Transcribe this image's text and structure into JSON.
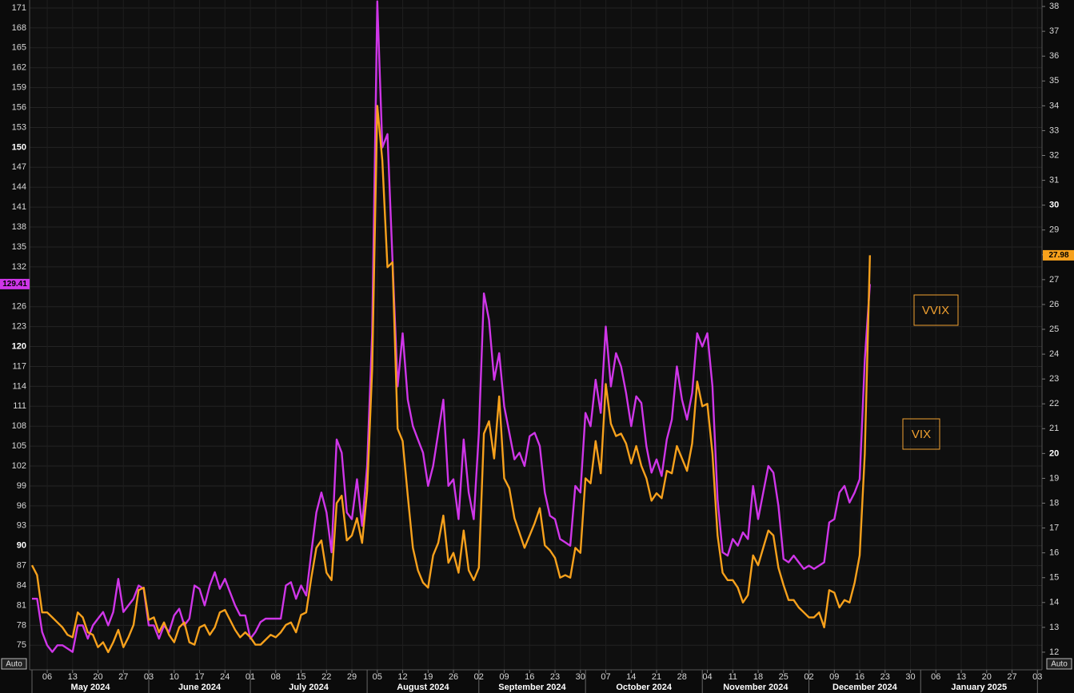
{
  "chart_data": {
    "type": "line",
    "categories": [
      null,
      null,
      null,
      "06",
      null,
      null,
      null,
      null,
      "13",
      null,
      null,
      null,
      null,
      "20",
      null,
      null,
      null,
      null,
      "27",
      null,
      null,
      null,
      null,
      "03",
      null,
      null,
      null,
      null,
      "10",
      null,
      null,
      null,
      null,
      "17",
      null,
      null,
      null,
      null,
      "24",
      null,
      null,
      null,
      null,
      "01",
      null,
      null,
      null,
      null,
      "08",
      null,
      null,
      null,
      null,
      "15",
      null,
      null,
      null,
      null,
      "22",
      null,
      null,
      null,
      null,
      "29",
      null,
      null,
      null,
      null,
      "05",
      null,
      null,
      null,
      null,
      "12",
      null,
      null,
      null,
      null,
      "19",
      null,
      null,
      null,
      null,
      "26",
      null,
      null,
      null,
      null,
      "02",
      null,
      null,
      null,
      null,
      "09",
      null,
      null,
      null,
      null,
      "16",
      null,
      null,
      null,
      null,
      "23",
      null,
      null,
      null,
      null,
      "30",
      null,
      null,
      null,
      null,
      "07",
      null,
      null,
      null,
      null,
      "14",
      null,
      null,
      null,
      null,
      "21",
      null,
      null,
      null,
      null,
      "28",
      null,
      null,
      null,
      null,
      "04",
      null,
      null,
      null,
      null,
      "11",
      null,
      null,
      null,
      null,
      "18",
      null,
      null,
      null,
      null,
      "25",
      null,
      null,
      null,
      null,
      "02",
      null,
      null,
      null,
      null,
      "09",
      null,
      null,
      null,
      null,
      "16",
      null,
      null,
      null,
      null,
      "23",
      null,
      null,
      null,
      null,
      "30",
      null,
      null,
      null,
      null,
      "06",
      null,
      null,
      null,
      null,
      "13",
      null,
      null,
      null,
      null,
      "20",
      null,
      null,
      null,
      null,
      "27",
      null,
      null,
      null,
      null,
      "03"
    ],
    "months": [
      "May 2024",
      "June 2024",
      "July 2024",
      "August 2024",
      "September 2024",
      "October 2024",
      "November 2024",
      "December 2024",
      "January 2025"
    ],
    "series": [
      {
        "name": "VVIX",
        "color": "#cf36e8",
        "values": [
          82,
          82,
          77,
          75,
          74,
          75,
          75,
          74.5,
          74,
          78,
          78,
          76,
          78,
          79,
          80,
          78,
          80,
          85,
          80,
          81,
          82,
          84,
          83.5,
          78,
          78,
          76,
          78,
          77,
          79.5,
          80.5,
          78,
          79,
          84,
          83.5,
          81,
          84,
          86,
          83.5,
          85,
          83,
          81,
          79.5,
          79.5,
          76,
          77,
          78.5,
          79,
          79,
          79,
          79,
          84,
          84.5,
          82,
          84,
          82.5,
          89,
          95,
          98,
          95,
          89,
          106,
          104,
          95,
          94,
          100,
          93,
          102,
          122,
          172,
          150,
          152,
          133,
          114,
          122,
          112,
          108,
          106,
          104,
          99,
          102,
          107,
          112,
          99,
          100,
          94,
          106,
          98,
          94,
          107,
          128,
          124,
          115,
          119,
          111,
          107,
          103,
          104,
          102,
          106.5,
          107,
          105,
          98,
          94.5,
          94,
          91,
          90.5,
          90,
          99,
          98,
          110,
          108,
          115,
          110,
          123,
          114,
          119,
          117,
          113,
          108,
          112.5,
          111.5,
          105,
          101,
          103,
          100.5,
          106,
          109,
          117,
          112,
          109,
          113,
          122,
          120,
          122,
          114,
          97,
          89,
          88.5,
          91,
          90,
          92,
          91,
          99,
          94,
          98,
          102,
          101,
          96,
          88,
          87.5,
          88.5,
          87.5,
          86.5,
          87,
          86.5,
          87,
          87.5,
          93.5,
          94,
          98,
          99,
          96.5,
          98,
          100,
          118,
          129.41,
          null,
          null,
          null,
          null,
          null,
          null,
          null,
          null,
          null,
          null,
          null,
          null,
          null,
          null,
          null,
          null,
          null,
          null,
          null,
          null,
          null,
          null,
          null,
          null,
          null,
          null,
          null,
          null,
          null,
          null,
          null,
          null,
          null
        ]
      },
      {
        "name": "VIX",
        "color": "#f7a11c",
        "axis": "y2",
        "values": [
          15.5,
          15.1,
          13.6,
          13.6,
          13.4,
          13.2,
          13.0,
          12.7,
          12.6,
          13.6,
          13.4,
          12.8,
          12.7,
          12.2,
          12.4,
          12.0,
          12.4,
          12.9,
          12.2,
          12.6,
          13.1,
          14.5,
          14.6,
          13.3,
          13.4,
          12.8,
          13.2,
          12.7,
          12.4,
          13.0,
          13.2,
          12.4,
          12.3,
          13.0,
          13.1,
          12.7,
          13.0,
          13.6,
          13.7,
          13.3,
          12.9,
          12.6,
          12.8,
          12.6,
          12.3,
          12.3,
          12.5,
          12.7,
          12.6,
          12.8,
          13.1,
          13.2,
          12.8,
          13.5,
          13.6,
          15.0,
          16.2,
          16.5,
          15.2,
          14.9,
          18.0,
          18.3,
          16.5,
          16.7,
          17.4,
          16.4,
          18.5,
          23.4,
          34.0,
          31.8,
          27.5,
          27.7,
          21.0,
          20.5,
          18.3,
          16.2,
          15.3,
          14.8,
          14.6,
          15.9,
          16.4,
          17.5,
          15.6,
          16.0,
          15.2,
          16.9,
          15.3,
          14.9,
          15.4,
          20.8,
          21.3,
          19.8,
          22.3,
          19.0,
          18.6,
          17.4,
          16.8,
          16.2,
          16.7,
          17.2,
          17.8,
          16.3,
          16.1,
          15.8,
          15.0,
          15.1,
          15.0,
          16.2,
          16.0,
          19.0,
          18.8,
          20.5,
          19.2,
          22.8,
          21.2,
          20.7,
          20.8,
          20.4,
          19.6,
          20.3,
          19.5,
          19.0,
          18.1,
          18.4,
          18.2,
          19.3,
          19.2,
          20.3,
          19.8,
          19.3,
          20.4,
          22.9,
          21.9,
          22.0,
          20.0,
          16.7,
          15.2,
          14.9,
          14.9,
          14.6,
          14.0,
          14.3,
          15.9,
          15.5,
          16.2,
          16.9,
          16.7,
          15.4,
          14.7,
          14.1,
          14.1,
          13.8,
          13.6,
          13.4,
          13.4,
          13.6,
          13.0,
          14.5,
          14.4,
          13.8,
          14.1,
          14.0,
          14.8,
          15.9,
          20.0,
          27.98,
          null,
          null,
          null,
          null,
          null,
          null,
          null,
          null,
          null,
          null,
          null,
          null,
          null,
          null,
          null,
          null,
          null,
          null,
          null,
          null,
          null,
          null,
          null,
          null,
          null,
          null,
          null,
          null,
          null,
          null,
          null,
          null,
          null
        ]
      }
    ],
    "ylim": [
      71.3,
      172.2
    ],
    "yticks": [
      75,
      78,
      81,
      84,
      87,
      90,
      93,
      96,
      99,
      102,
      105,
      108,
      111,
      114,
      117,
      120,
      123,
      126,
      129,
      132,
      135,
      138,
      141,
      144,
      147,
      150,
      153,
      156,
      159,
      162,
      165,
      168,
      171
    ],
    "y2lim": [
      11.29,
      38.26
    ],
    "y2ticks": [
      12,
      13,
      14,
      15,
      16,
      17,
      18,
      19,
      20,
      21,
      22,
      23,
      24,
      25,
      26,
      27,
      28,
      29,
      30,
      31,
      32,
      33,
      34,
      35,
      36,
      37,
      38
    ],
    "grid": true,
    "left_scale_mode": "Auto",
    "right_scale_mode": "Auto"
  }
}
